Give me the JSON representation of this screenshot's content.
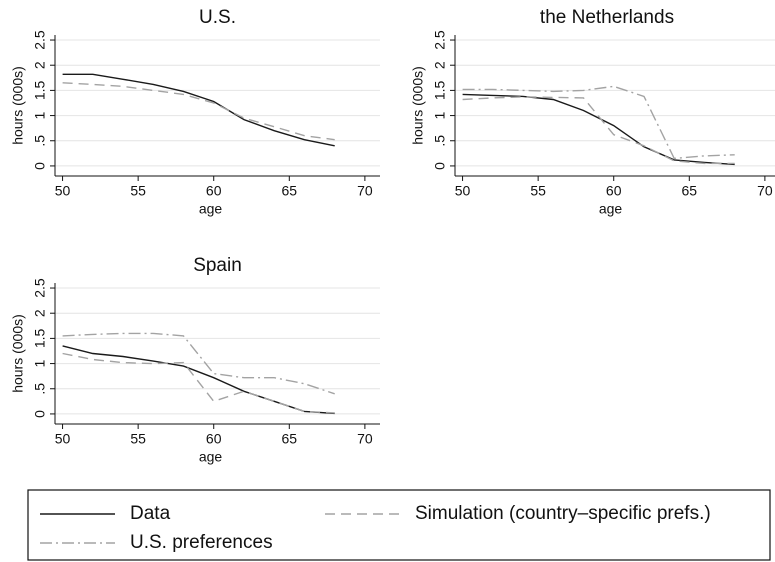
{
  "chart_data": [
    {
      "type": "line",
      "title": "U.S.",
      "xlabel": "age",
      "ylabel": "hours (000s)",
      "x": [
        50,
        52,
        54,
        56,
        58,
        60,
        62,
        64,
        66,
        68
      ],
      "series": [
        {
          "style": 0,
          "values": [
            1.82,
            1.82,
            1.72,
            1.62,
            1.48,
            1.28,
            0.92,
            0.7,
            0.52,
            0.4
          ]
        },
        {
          "style": 1,
          "values": [
            1.65,
            1.62,
            1.58,
            1.5,
            1.42,
            1.25,
            0.95,
            0.78,
            0.6,
            0.52
          ]
        }
      ],
      "xlim": [
        49.5,
        71
      ],
      "ylim": [
        -0.2,
        2.6
      ],
      "xticks": [
        50,
        55,
        60,
        65,
        70
      ],
      "yticks": [
        0,
        {
          "value": 0.5,
          "label": ".5"
        },
        1,
        1.5,
        2,
        2.5
      ],
      "grid": true
    },
    {
      "type": "line",
      "title": "the Netherlands",
      "xlabel": "age",
      "ylabel": "hours (000s)",
      "x": [
        50,
        52,
        54,
        56,
        58,
        60,
        62,
        64,
        66,
        68
      ],
      "series": [
        {
          "style": 0,
          "values": [
            1.42,
            1.4,
            1.38,
            1.32,
            1.1,
            0.8,
            0.38,
            0.12,
            0.07,
            0.03
          ]
        },
        {
          "style": 1,
          "values": [
            1.32,
            1.35,
            1.37,
            1.36,
            1.35,
            0.62,
            0.4,
            0.1,
            0.05,
            0.05
          ]
        },
        {
          "style": 2,
          "values": [
            1.52,
            1.52,
            1.5,
            1.48,
            1.5,
            1.58,
            1.38,
            0.15,
            0.2,
            0.22
          ]
        }
      ],
      "xlim": [
        49.5,
        71
      ],
      "ylim": [
        -0.2,
        2.6
      ],
      "xticks": [
        50,
        55,
        60,
        65,
        70
      ],
      "yticks": [
        0,
        {
          "value": 0.5,
          "label": ".5"
        },
        1,
        1.5,
        2,
        2.5
      ],
      "grid": true
    },
    {
      "type": "line",
      "title": "Spain",
      "xlabel": "age",
      "ylabel": "hours (000s)",
      "x": [
        50,
        52,
        54,
        56,
        58,
        60,
        62,
        64,
        66,
        68
      ],
      "series": [
        {
          "style": 0,
          "values": [
            1.35,
            1.2,
            1.14,
            1.05,
            0.95,
            0.72,
            0.45,
            0.25,
            0.05,
            0.01
          ]
        },
        {
          "style": 1,
          "values": [
            1.2,
            1.08,
            1.02,
            1.0,
            1.02,
            0.25,
            0.45,
            0.25,
            0.05,
            0.02
          ]
        },
        {
          "style": 2,
          "values": [
            1.55,
            1.58,
            1.6,
            1.6,
            1.55,
            0.8,
            0.72,
            0.72,
            0.6,
            0.4
          ]
        }
      ],
      "xlim": [
        49.5,
        71
      ],
      "ylim": [
        -0.2,
        2.6
      ],
      "xticks": [
        50,
        55,
        60,
        65,
        70
      ],
      "yticks": [
        0,
        {
          "value": 0.5,
          "label": ".5"
        },
        1,
        1.5,
        2,
        2.5
      ],
      "grid": true
    }
  ],
  "legend": [
    {
      "name": "Data",
      "color": "#1a1a1a",
      "dash": "none"
    },
    {
      "name": "Simulation (country–specific prefs.)",
      "color": "#a3a3a3",
      "dash": "10,6"
    },
    {
      "name": "U.S. preferences",
      "color": "#a3a3a3",
      "dash": "12,4,2,4"
    }
  ]
}
